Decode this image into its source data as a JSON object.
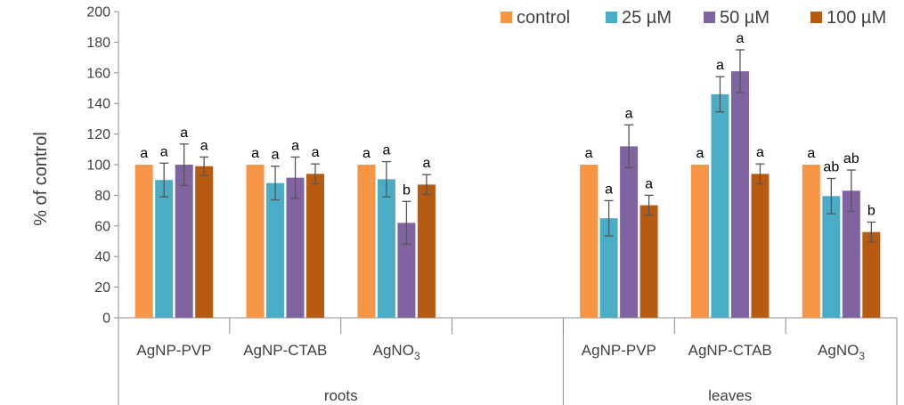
{
  "chart_data": {
    "type": "bar",
    "ylabel": "% of control",
    "ylim": [
      0,
      200
    ],
    "yticks": [
      0,
      20,
      40,
      60,
      80,
      100,
      120,
      140,
      160,
      180,
      200
    ],
    "legend_position": "top-right",
    "series": [
      {
        "name": "control",
        "color": "#F79646"
      },
      {
        "name": "25 µM",
        "color": "#4BACC6"
      },
      {
        "name": "50 µM",
        "color": "#8064A2"
      },
      {
        "name": "100 µM",
        "color": "#B85B12"
      }
    ],
    "groups": [
      {
        "label": "roots",
        "categories": [
          {
            "name": "AgNP-PVP",
            "values": [
              100,
              90,
              100,
              99
            ],
            "errors": [
              0,
              11,
              13.5,
              6
            ],
            "letters": [
              "a",
              "a",
              "a",
              "a"
            ]
          },
          {
            "name": "AgNP-CTAB",
            "values": [
              100,
              88,
              91.5,
              94
            ],
            "errors": [
              0,
              11,
              13.5,
              6.5
            ],
            "letters": [
              "a",
              "a",
              "a",
              "a"
            ]
          },
          {
            "name": "AgNO",
            "sub": "3",
            "values": [
              100,
              90.5,
              62,
              87
            ],
            "errors": [
              0,
              11.5,
              14,
              6.5
            ],
            "letters": [
              "a",
              "a",
              "b",
              "a"
            ]
          },
          {
            "name": "",
            "values": null
          }
        ]
      },
      {
        "label": "leaves",
        "categories": [
          {
            "name": "AgNP-PVP",
            "values": [
              100,
              65,
              112,
              73.5
            ],
            "errors": [
              0,
              11.5,
              14,
              6.5
            ],
            "letters": [
              "a",
              "a",
              "a",
              "a"
            ]
          },
          {
            "name": "AgNP-CTAB",
            "values": [
              100,
              146,
              161,
              94
            ],
            "errors": [
              0,
              11.5,
              14,
              6.5
            ],
            "letters": [
              "a",
              "a",
              "a",
              "a"
            ]
          },
          {
            "name": "AgNO",
            "sub": "3",
            "values": [
              100,
              79.5,
              83,
              56
            ],
            "errors": [
              0,
              11.5,
              13.5,
              6.5
            ],
            "letters": [
              "a",
              "ab",
              "ab",
              "b"
            ]
          }
        ]
      }
    ]
  }
}
